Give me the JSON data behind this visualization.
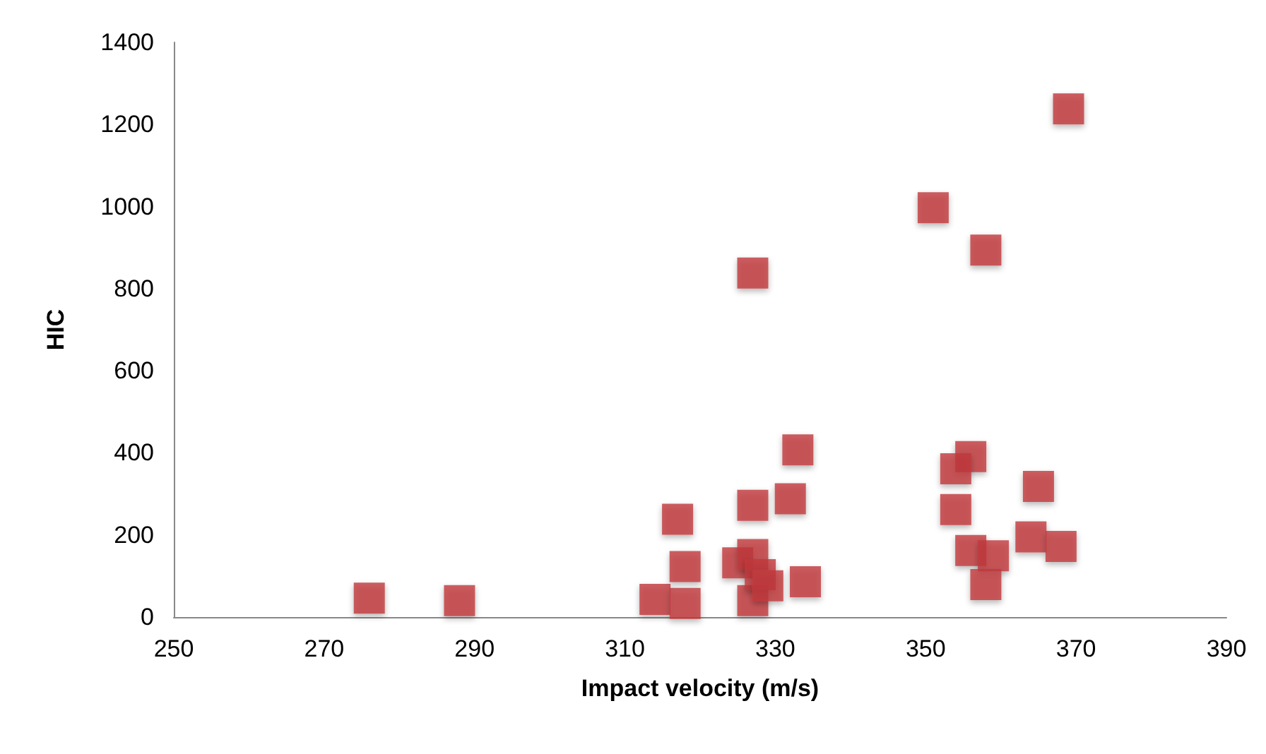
{
  "chart_data": {
    "type": "scatter",
    "xlabel": "Impact velocity (m/s)",
    "ylabel": "HIC",
    "marker": "square",
    "grid": false,
    "xlim": [
      250,
      390
    ],
    "xticks": [
      250,
      270,
      290,
      310,
      330,
      350,
      370,
      390
    ],
    "ylim": [
      0,
      1400
    ],
    "yticks": [
      0,
      200,
      400,
      600,
      800,
      1000,
      1200,
      1400
    ],
    "series": [
      {
        "color": "#c0393b",
        "x": [
          276,
          288,
          314,
          318,
          318,
          317,
          325,
          327,
          327,
          327,
          328,
          329,
          332,
          333,
          334,
          327,
          351,
          358,
          369,
          356,
          354,
          354,
          365,
          356,
          359,
          364,
          368,
          358
        ],
        "values": [
          46,
          40,
          43,
          33,
          123,
          238,
          132,
          40,
          152,
          272,
          103,
          76,
          288,
          407,
          86,
          838,
          997,
          894,
          1238,
          391,
          361,
          262,
          318,
          162,
          149,
          195,
          172,
          79
        ]
      }
    ]
  }
}
